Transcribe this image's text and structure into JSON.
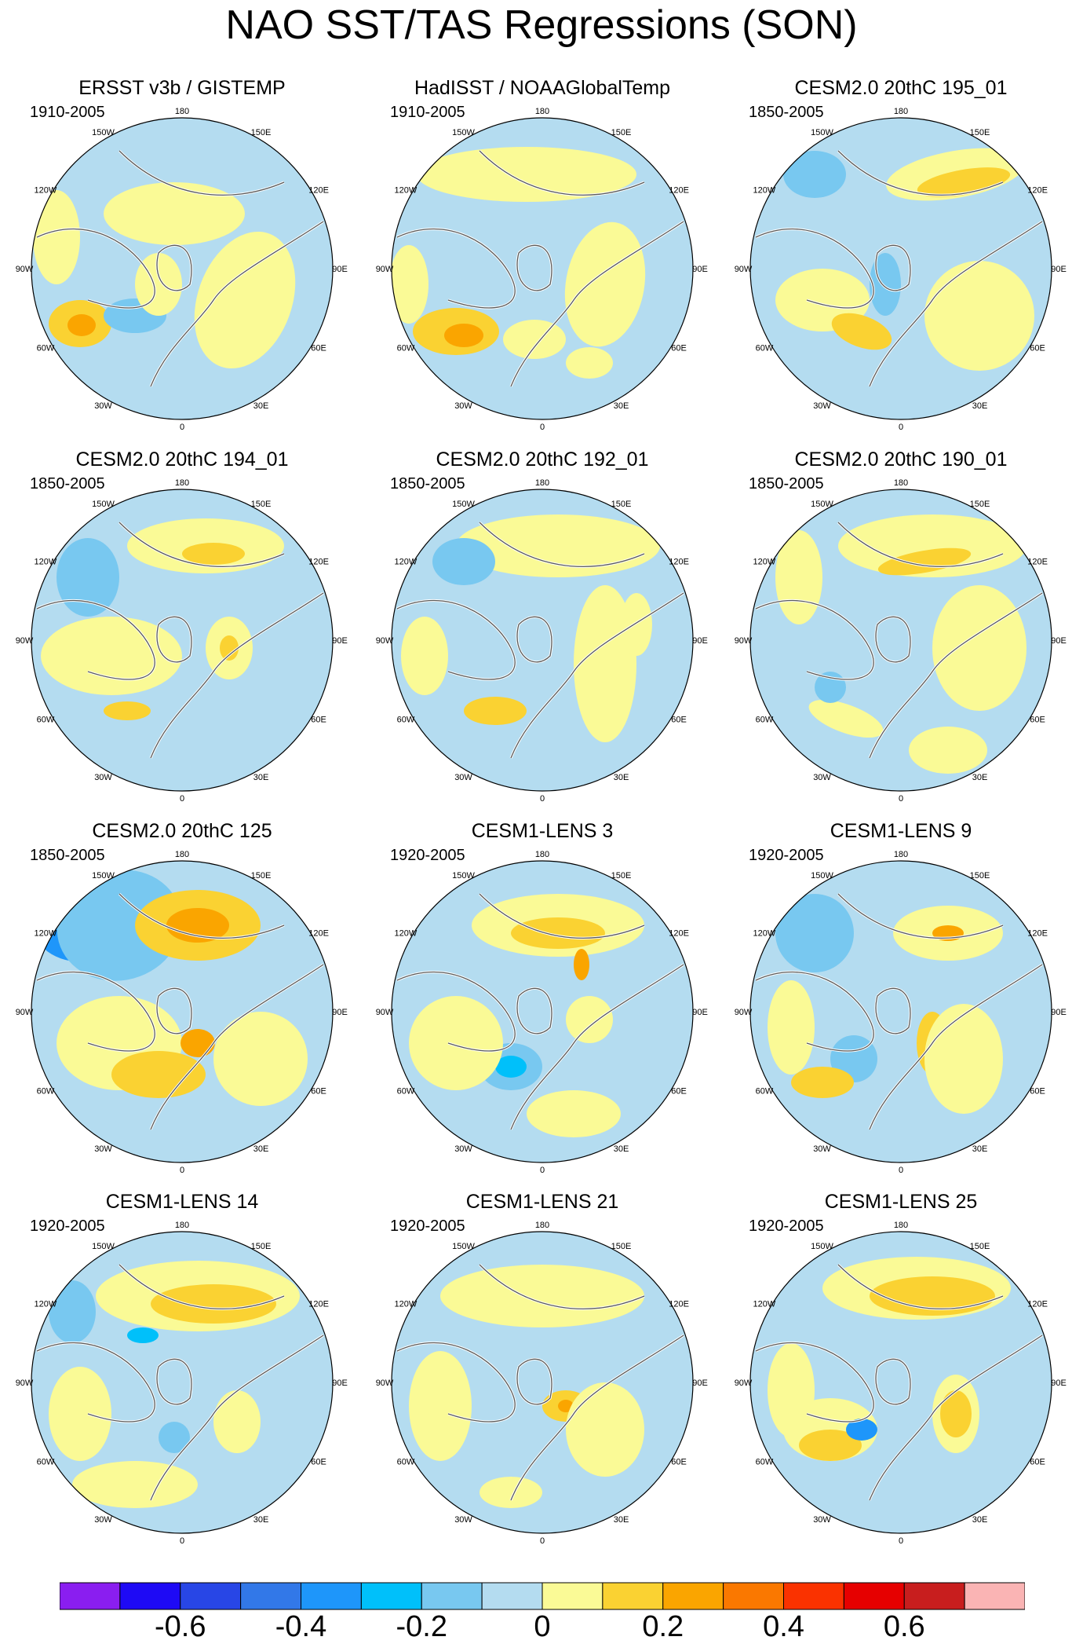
{
  "title": "NAO SST/TAS Regressions (SON)",
  "panels": [
    {
      "title": "ERSST v3b / GISTEMP",
      "years": "1910-2005"
    },
    {
      "title": "HadISST / NOAAGlobalTemp",
      "years": "1910-2005"
    },
    {
      "title": "CESM2.0 20thC 195_01",
      "years": "1850-2005"
    },
    {
      "title": "CESM2.0 20thC 194_01",
      "years": "1850-2005"
    },
    {
      "title": "CESM2.0 20thC 192_01",
      "years": "1850-2005"
    },
    {
      "title": "CESM2.0 20thC 190_01",
      "years": "1850-2005"
    },
    {
      "title": "CESM2.0 20thC 125",
      "years": "1850-2005"
    },
    {
      "title": "CESM1-LENS 3",
      "years": "1920-2005"
    },
    {
      "title": "CESM1-LENS 9",
      "years": "1920-2005"
    },
    {
      "title": "CESM1-LENS 14",
      "years": "1920-2005"
    },
    {
      "title": "CESM1-LENS 21",
      "years": "1920-2005"
    },
    {
      "title": "CESM1-LENS 25",
      "years": "1920-2005"
    }
  ],
  "longitude_labels": [
    "180",
    "150E",
    "120E",
    "90E",
    "60E",
    "30E",
    "0",
    "30W",
    "60W",
    "90W",
    "120W",
    "150W"
  ],
  "colorbar": {
    "colors": [
      "#8a1ef0",
      "#1e0af5",
      "#2846e6",
      "#3278e8",
      "#1e96fa",
      "#00c0fa",
      "#78c8f0",
      "#b4dcf0",
      "#fafa96",
      "#fad232",
      "#faa500",
      "#fa7800",
      "#fa3200",
      "#e60000",
      "#c81e1e",
      "#fab4b4"
    ],
    "labels": [
      "-0.6",
      "-0.4",
      "-0.2",
      "0",
      "0.2",
      "0.4",
      "0.6"
    ]
  }
}
